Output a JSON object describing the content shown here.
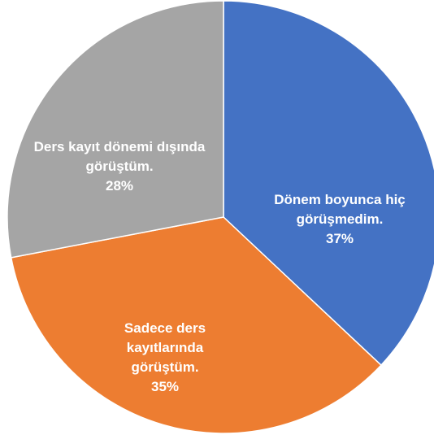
{
  "chart_data": {
    "type": "pie",
    "categories": [
      "Dönem boyunca hiç görüşmedim.",
      "Sadece ders kayıtlarında görüştüm.",
      "Ders kayıt dönemi dışında görüştüm."
    ],
    "values": [
      37,
      35,
      28
    ],
    "value_labels": [
      "37%",
      "35%",
      "28%"
    ],
    "colors": [
      "#4472c4",
      "#ed7d31",
      "#a5a5a5"
    ]
  }
}
